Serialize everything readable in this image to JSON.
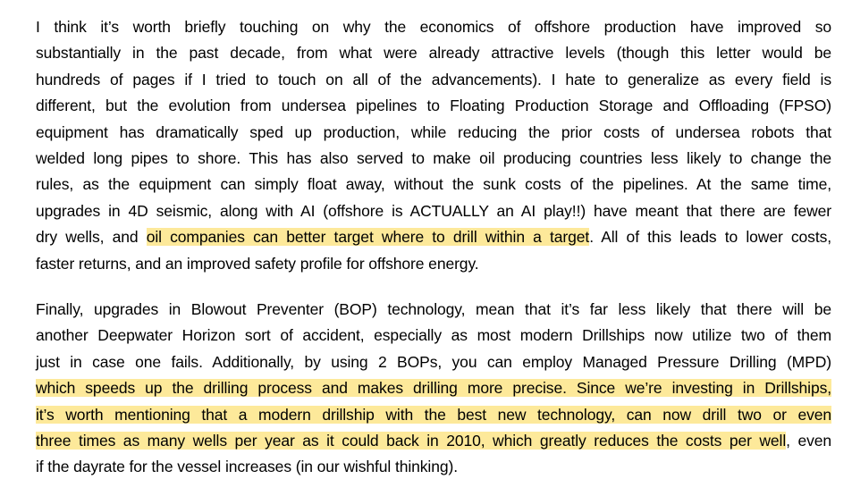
{
  "paragraph1": {
    "lines": [
      {
        "text": "I think it’s worth briefly touching on why the economics of offshore production have improved so"
      },
      {
        "text": "substantially in the past decade, from what were already attractive levels (though this letter would be"
      },
      {
        "text": "hundreds of pages if I tried to touch on all of the advancements). I hate to generalize as every field is"
      },
      {
        "text": "different, but the evolution from undersea pipelines to Floating Production Storage and Offloading (FPSO)"
      },
      {
        "text": "equipment has dramatically sped up production, while reducing the prior costs of undersea robots that"
      },
      {
        "text": "welded long pipes to shore. This has also served to make oil producing countries less likely to change the"
      },
      {
        "text": "rules, as the equipment can simply float away, without the sunk costs of the pipelines. At the same time,"
      },
      {
        "text": "upgrades in 4D seismic, along with AI (offshore is ACTUALLY an AI play!!) have meant that there are fewer"
      },
      {
        "pre": "dry wells, and ",
        "highlight": "oil companies can better target where to drill within a target",
        "post": ". All of this leads to lower costs,"
      },
      {
        "text": "faster returns, and an improved safety profile for offshore energy."
      }
    ]
  },
  "paragraph2": {
    "lines": [
      {
        "text": "Finally, upgrades in Blowout Preventer (BOP) technology, mean that it’s far less likely that there will be"
      },
      {
        "text": "another Deepwater Horizon sort of accident, especially as most modern Drillships now utilize two of them"
      },
      {
        "text": "just in case one fails. Additionally, by using 2 BOPs, you can employ Managed Pressure Drilling (MPD)"
      },
      {
        "highlight": "which speeds up the drilling process and makes drilling more precise. Since we’re investing in Drillships,"
      },
      {
        "highlight": "it’s worth mentioning that a modern drillship with the best new technology, can now drill two or even"
      },
      {
        "highlight": "three times as many wells per year as it could back in 2010, which greatly reduces the costs per well",
        "post": ", even"
      },
      {
        "text": "if the dayrate for the vessel increases (in our wishful thinking)."
      }
    ]
  },
  "colors": {
    "text": "#000000",
    "highlight": "#fde99a",
    "background": "#ffffff"
  }
}
